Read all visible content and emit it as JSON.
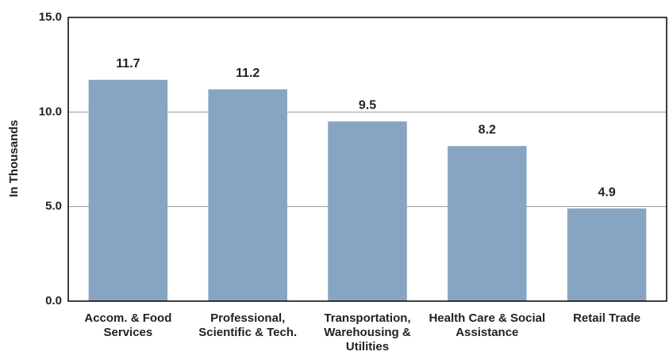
{
  "chart_data": {
    "type": "bar",
    "y_label": "In Thousands",
    "categories": [
      "Accom. & Food Services",
      "Professional, Scientific & Tech.",
      "Transportation, Warehousing & Utilities",
      "Health Care & Social Assistance",
      "Retail Trade"
    ],
    "values": [
      11.7,
      11.2,
      9.5,
      8.2,
      4.9
    ],
    "color": "#87a5c3",
    "ylim": [
      0,
      15
    ],
    "yticks": [
      {
        "value": 0,
        "label": "0.0"
      },
      {
        "value": 5,
        "label": "5.0"
      },
      {
        "value": 10,
        "label": "10.0"
      },
      {
        "value": 15,
        "label": "15.0"
      }
    ],
    "grid": true
  }
}
